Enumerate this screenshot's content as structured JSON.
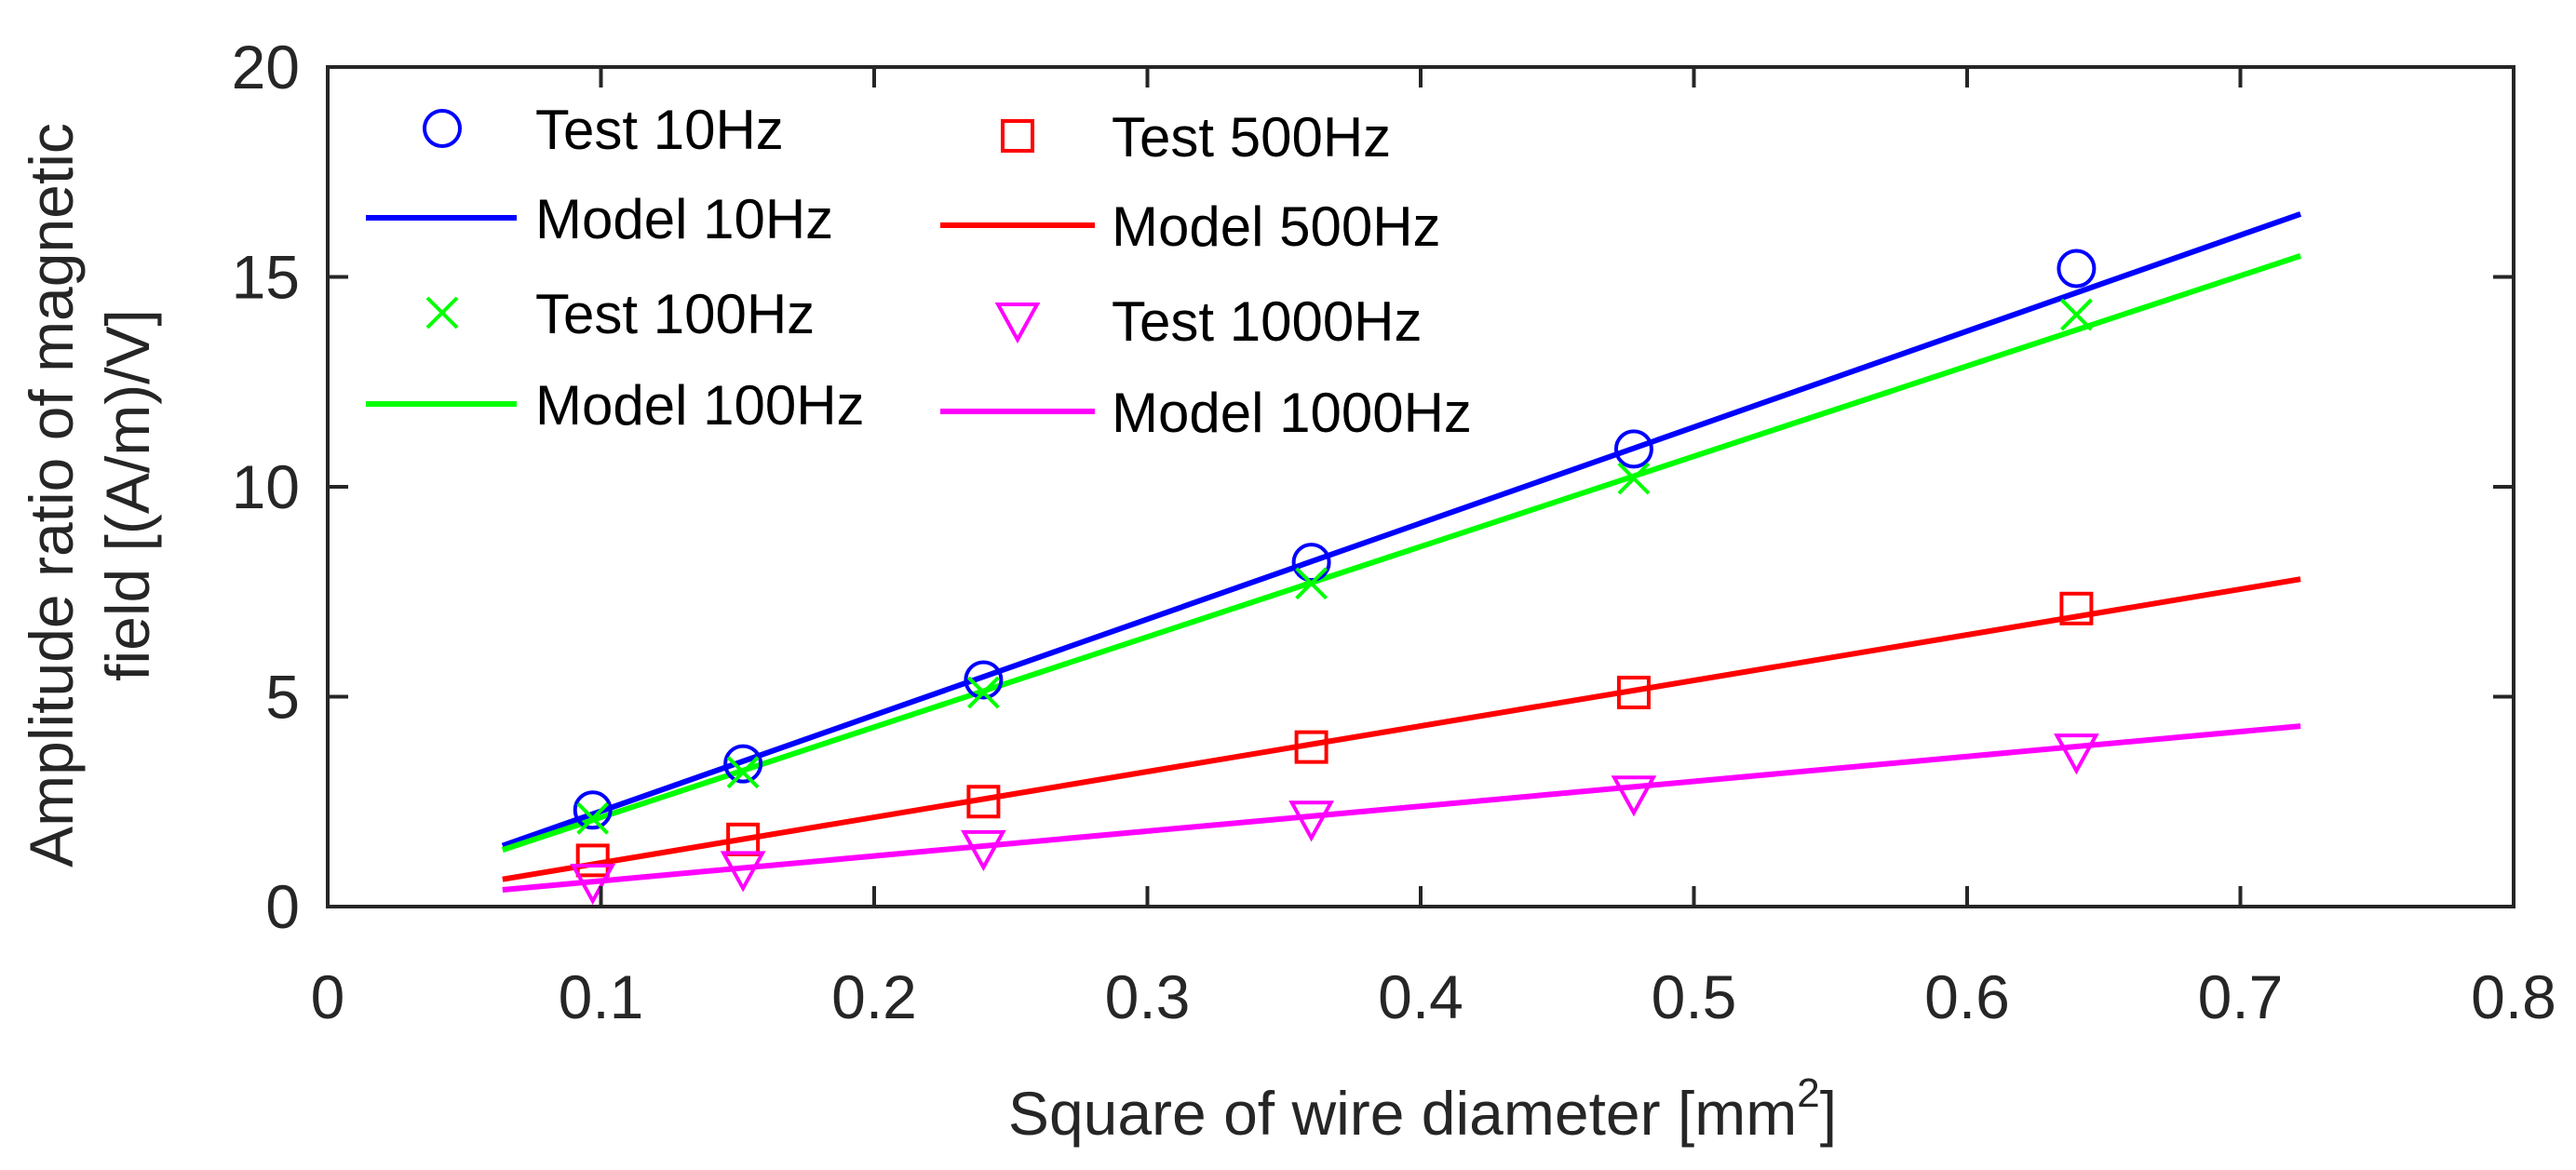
{
  "chart_data": {
    "type": "line",
    "title": "",
    "xlabel": {
      "main": "Square of wire diameter [mm",
      "sup": "2",
      "end": "]"
    },
    "ylabel": [
      "Amplitude ratio of magnetic",
      "field [(A/m)/V]"
    ],
    "xlim": [
      0,
      0.8
    ],
    "ylim": [
      0,
      20
    ],
    "xticks": [
      0,
      0.1,
      0.2,
      0.3,
      0.4,
      0.5,
      0.6,
      0.7,
      0.8
    ],
    "xtick_labels": [
      "0",
      "0.1",
      "0.2",
      "0.3",
      "0.4",
      "0.5",
      "0.6",
      "0.7",
      "0.8"
    ],
    "yticks": [
      0,
      5,
      10,
      15,
      20
    ],
    "ytick_labels": [
      "0",
      "5",
      "10",
      "15",
      "20"
    ],
    "grid": false,
    "legend_position": "top-left, two columns",
    "test_series": [
      {
        "name": "Test 10Hz",
        "marker": "circle",
        "color": "#0000ff",
        "x": [
          0.097,
          0.152,
          0.24,
          0.36,
          0.478,
          0.64
        ],
        "y": [
          2.3,
          3.4,
          5.4,
          8.2,
          10.9,
          15.2
        ]
      },
      {
        "name": "Test 100Hz",
        "marker": "x",
        "color": "#00ff00",
        "x": [
          0.097,
          0.152,
          0.24,
          0.36,
          0.478,
          0.64
        ],
        "y": [
          2.1,
          3.2,
          5.1,
          7.7,
          10.2,
          14.1
        ]
      },
      {
        "name": "Test 500Hz",
        "marker": "square",
        "color": "#ff0000",
        "x": [
          0.097,
          0.152,
          0.24,
          0.36,
          0.478,
          0.64
        ],
        "y": [
          1.1,
          1.6,
          2.5,
          3.8,
          5.1,
          7.1
        ]
      },
      {
        "name": "Test 1000Hz",
        "marker": "triangle-down",
        "color": "#ff00ff",
        "x": [
          0.097,
          0.152,
          0.24,
          0.36,
          0.478,
          0.64
        ],
        "y": [
          0.6,
          0.9,
          1.4,
          2.1,
          2.7,
          3.7
        ]
      }
    ],
    "model_series": [
      {
        "name": "Model 10Hz",
        "color": "#0000ff",
        "x": [
          0.064,
          0.722
        ],
        "y": [
          1.45,
          16.5
        ]
      },
      {
        "name": "Model 100Hz",
        "color": "#00ff00",
        "x": [
          0.064,
          0.722
        ],
        "y": [
          1.35,
          15.5
        ]
      },
      {
        "name": "Model 500Hz",
        "color": "#ff0000",
        "x": [
          0.064,
          0.722
        ],
        "y": [
          0.65,
          7.8
        ]
      },
      {
        "name": "Model 1000Hz",
        "color": "#ff00ff",
        "x": [
          0.064,
          0.722
        ],
        "y": [
          0.4,
          4.3
        ]
      }
    ],
    "legend": {
      "left": [
        "Test 10Hz",
        "Model 10Hz",
        "Test 100Hz",
        "Model 100Hz"
      ],
      "right": [
        "Test 500Hz",
        "Model 500Hz",
        "Test 1000Hz",
        "Model 1000Hz"
      ]
    }
  }
}
